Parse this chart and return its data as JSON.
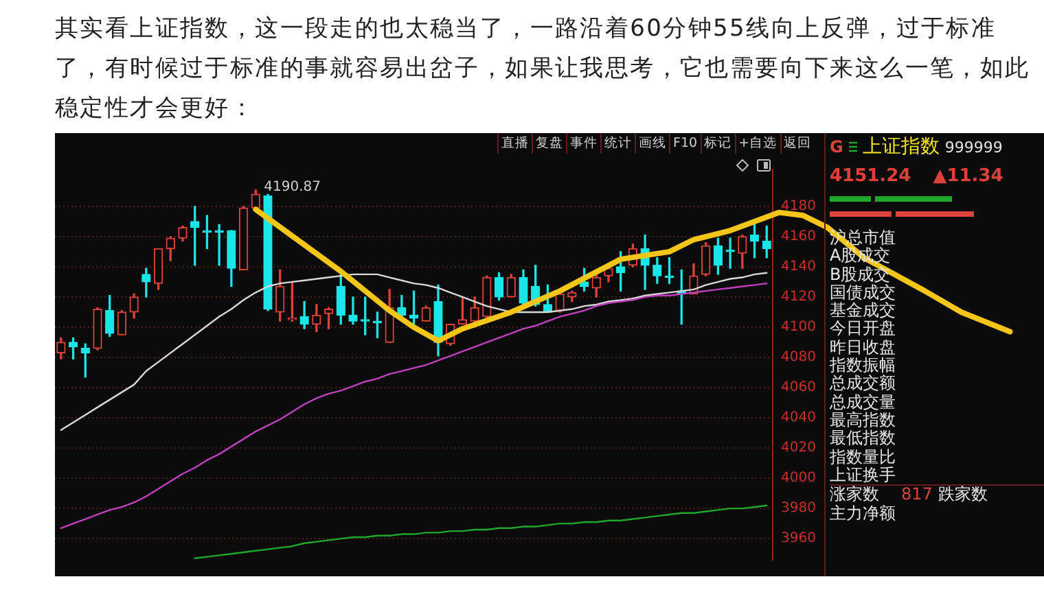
{
  "chart_data": [
    {
      "type": "candlestick",
      "title": "其实看上证指数，这一段走的也太稳当了，一路沿着60分钟55线向上反弹，过于标准了，有时候过于标准的事就容易出岔子，如果让我思考，它也需要向下来这么一笔，如此稳定性才会更好：",
      "categories": [
        null,
        null,
        null,
        null,
        null,
        null,
        null,
        null,
        null,
        null,
        null,
        null,
        null,
        null,
        null,
        null,
        null,
        null,
        null,
        null,
        null,
        null,
        null,
        null,
        null,
        null,
        null,
        null,
        null,
        null,
        null,
        null,
        null,
        null,
        null,
        null,
        null,
        null,
        null,
        null,
        null,
        null,
        null,
        null,
        null,
        null,
        null,
        null,
        null,
        null,
        null,
        null,
        null,
        null,
        null,
        null,
        null,
        null,
        null,
        null,
        null,
        null,
        null,
        null,
        null,
        null,
        null,
        null,
        null,
        null,
        null,
        null,
        null,
        null,
        null,
        null,
        null,
        null,
        null,
        null
      ],
      "ohlc": [
        [
          4083,
          4093,
          4079,
          4090
        ],
        [
          4090,
          4093,
          4079,
          4087
        ],
        [
          4086,
          4089,
          4067,
          4083
        ],
        [
          4086,
          4113,
          4085,
          4112
        ],
        [
          4111,
          4121,
          4094,
          4096
        ],
        [
          4095,
          4111,
          4095,
          4110
        ],
        [
          4110,
          4122,
          4106,
          4120
        ],
        [
          4135,
          4139,
          4120,
          4130
        ],
        [
          4129,
          4152,
          4125,
          4152
        ],
        [
          4152,
          4160,
          4144,
          4159
        ],
        [
          4159,
          4167,
          4157,
          4166
        ],
        [
          4170,
          4180,
          4141,
          4166
        ],
        [
          4164,
          4174,
          4152,
          4163
        ],
        [
          4164,
          4168,
          4141,
          4163
        ],
        [
          4164,
          4164,
          4127,
          4139
        ],
        [
          4138,
          4180,
          4138,
          4179
        ],
        [
          4179,
          4190.87,
          4179,
          4188
        ],
        [
          4187,
          4188,
          4111,
          4112
        ],
        [
          4110,
          4138,
          4104,
          4127
        ],
        [
          4105,
          4130,
          4104,
          4106
        ],
        [
          4107,
          4117,
          4099,
          4102
        ],
        [
          4102,
          4115,
          4097,
          4108
        ],
        [
          4109,
          4113,
          4099,
          4112
        ],
        [
          4127,
          4135,
          4102,
          4108
        ],
        [
          4108,
          4120,
          4102,
          4104
        ],
        [
          4105,
          4120,
          4095,
          4104
        ],
        [
          4104,
          4110,
          4093,
          4103
        ],
        [
          4090,
          4125,
          4090,
          4113
        ],
        [
          4113,
          4121,
          4106,
          4108
        ],
        [
          4108,
          4124,
          4102,
          4106
        ],
        [
          4104,
          4114,
          4104,
          4113
        ],
        [
          4117,
          4128,
          4081,
          4090
        ],
        [
          4089,
          4102,
          4088,
          4102
        ],
        [
          4102,
          4120,
          4102,
          4105
        ],
        [
          4104,
          4120,
          4100,
          4113
        ],
        [
          4107,
          4134,
          4104,
          4133
        ],
        [
          4133,
          4136,
          4118,
          4120
        ],
        [
          4120,
          4135,
          4120,
          4133
        ],
        [
          4133,
          4138,
          4114,
          4116
        ],
        [
          4127,
          4141,
          4114,
          4115
        ],
        [
          4115,
          4128,
          4110,
          4110
        ],
        [
          4111,
          4122,
          4110,
          4122
        ],
        [
          4120,
          4124,
          4117,
          4123
        ],
        [
          4130,
          4139,
          4124,
          4127
        ],
        [
          4126,
          4136,
          4120,
          4133
        ],
        [
          4134,
          4142,
          4130,
          4139
        ],
        [
          4140,
          4150,
          4124,
          4136
        ],
        [
          4141,
          4155,
          4140,
          4152
        ],
        [
          4152,
          4161,
          4125,
          4141
        ],
        [
          4141,
          4146,
          4129,
          4134
        ],
        [
          4134,
          4146,
          4129,
          4133
        ],
        [
          4124,
          4138,
          4102,
          4122
        ],
        [
          4122,
          4142,
          4122,
          4134
        ],
        [
          4135,
          4156,
          4134,
          4154
        ],
        [
          4154,
          4159,
          4135,
          4141
        ],
        [
          4151,
          4159,
          4139,
          4150
        ],
        [
          4149,
          4161,
          4139,
          4160
        ],
        [
          4161,
          4169,
          4146,
          4157
        ],
        [
          4157,
          4167,
          4146,
          4152
        ],
        null,
        null,
        null,
        null,
        null,
        null,
        null,
        null,
        null,
        null,
        null,
        null,
        null,
        null,
        null,
        null,
        null,
        null,
        null,
        null,
        null
      ],
      "colors": [
        "#e0403a",
        "#19e6e6",
        "#19e6e6",
        "#e0403a",
        "#19e6e6",
        "#e0403a",
        "#e0403a",
        "#19e6e6",
        "#e0403a",
        "#e0403a",
        "#e0403a",
        "#19e6e6",
        "#19e6e6",
        "#19e6e6",
        "#19e6e6",
        "#e0403a",
        "#e0403a",
        "#19e6e6",
        "#e0403a",
        "#e0403a",
        "#19e6e6",
        "#e0403a",
        "#e0403a",
        "#19e6e6",
        "#19e6e6",
        "#19e6e6",
        "#19e6e6",
        "#e0403a",
        "#19e6e6",
        "#19e6e6",
        "#e0403a",
        "#19e6e6",
        "#e0403a",
        "#e0403a",
        "#e0403a",
        "#e0403a",
        "#19e6e6",
        "#e0403a",
        "#19e6e6",
        "#19e6e6",
        "#19e6e6",
        "#e0403a",
        "#e0403a",
        "#19e6e6",
        "#e0403a",
        "#e0403a",
        "#19e6e6",
        "#e0403a",
        "#19e6e6",
        "#19e6e6",
        "#19e6e6",
        "#19e6e6",
        "#e0403a",
        "#e0403a",
        "#19e6e6",
        "#19e6e6",
        "#e0403a",
        "#19e6e6",
        "#19e6e6",
        null,
        null,
        null,
        null,
        null,
        null,
        null,
        null,
        null,
        null,
        null,
        null,
        null,
        null,
        null,
        null,
        null,
        null,
        null,
        null,
        null
      ],
      "series": [
        {
          "type": "line",
          "color": "#d8d8d8",
          "values": [
            4032,
            4037,
            4042,
            4047,
            4052,
            4057,
            4062,
            4071,
            4077,
            4083,
            4089,
            4095,
            4101,
            4107,
            4112,
            4118,
            4123,
            4127,
            4129,
            4130,
            4131,
            4132,
            4133,
            4134,
            4135,
            4135,
            4135,
            4133,
            4131,
            4129,
            4128,
            4126,
            4123,
            4120,
            4117,
            4114,
            4112,
            4110,
            4110,
            4110,
            4110,
            4111,
            4112,
            4114,
            4115,
            4117,
            4118,
            4119,
            4121,
            4122,
            4123,
            4124,
            4125,
            4128,
            4130,
            4132,
            4133,
            4135,
            4136,
            null,
            null,
            null,
            null,
            null,
            null,
            null,
            null,
            null,
            null,
            null,
            null,
            null,
            null,
            null,
            null,
            null,
            null,
            null,
            null,
            null
          ]
        },
        {
          "type": "line",
          "color": "#c040c0",
          "values": [
            3967,
            3970,
            3973,
            3976,
            3979,
            3981,
            3984,
            3988,
            3993,
            3998,
            4003,
            4007,
            4012,
            4016,
            4021,
            4026,
            4031,
            4035,
            4039,
            4044,
            4049,
            4053,
            4056,
            4058,
            4061,
            4064,
            4066,
            4069,
            4071,
            4073,
            4075,
            4078,
            4081,
            4084,
            4087,
            4090,
            4093,
            4096,
            4099,
            4101,
            4104,
            4107,
            4109,
            4111,
            4114,
            4116,
            4117,
            4118,
            4120,
            4121,
            4121,
            4122,
            4123,
            4124,
            4125,
            4126,
            4127,
            4128,
            4129,
            null,
            null,
            null,
            null,
            null,
            null,
            null,
            null,
            null,
            null,
            null,
            null,
            null,
            null,
            null,
            null,
            null,
            null,
            null,
            null,
            null
          ]
        },
        {
          "type": "line",
          "color": "#1fa82a",
          "values": [
            null,
            null,
            null,
            null,
            null,
            null,
            null,
            null,
            null,
            null,
            null,
            3947,
            3948,
            3949,
            3950,
            3951,
            3952,
            3953,
            3954,
            3955,
            3957,
            3958,
            3959,
            3960,
            3961,
            3961,
            3962,
            3962,
            3963,
            3963,
            3964,
            3964,
            3965,
            3965,
            3966,
            3966,
            3967,
            3967,
            3968,
            3968,
            3969,
            3970,
            3970,
            3971,
            3971,
            3972,
            3972,
            3973,
            3974,
            3975,
            3976,
            3977,
            3977,
            3978,
            3979,
            3980,
            3980,
            3981,
            3982,
            null,
            null,
            null,
            null,
            null,
            null,
            null,
            null,
            null,
            null,
            null,
            null,
            null,
            null,
            null,
            null,
            null,
            null,
            null,
            null,
            null
          ]
        },
        {
          "type": "line",
          "color": "#f5c518",
          "values": [
            null,
            null,
            null,
            null,
            null,
            null,
            null,
            null,
            null,
            null,
            null,
            null,
            null,
            null,
            null,
            null,
            4178,
            null,
            null,
            null,
            null,
            null,
            null,
            4137,
            null,
            null,
            null,
            4111,
            null,
            4100,
            null,
            4091,
            null,
            4099,
            null,
            null,
            null,
            4110,
            null,
            null,
            null,
            4124,
            null,
            null,
            null,
            null,
            4145,
            null,
            null,
            null,
            4150,
            null,
            4158,
            null,
            null,
            4164,
            null,
            null,
            null,
            4176,
            null,
            4174,
            null,
            4166,
            null,
            null,
            4146,
            null,
            null,
            null,
            null,
            4124,
            null,
            null,
            4110,
            null,
            null,
            null,
            4097,
            null
          ]
        }
      ],
      "ylim": [
        3946,
        4204
      ],
      "yticks": [
        3960,
        3980,
        4000,
        4020,
        4040,
        4060,
        4080,
        4100,
        4120,
        4140,
        4160,
        4180
      ],
      "grid": "y",
      "legend": false,
      "marker": "none",
      "annotations": [
        "直播",
        "复盘",
        "事件",
        "统计",
        "画线",
        "F10",
        "标记",
        "+自选",
        "返回",
        "4190.87"
      ]
    },
    {
      "type": "other",
      "title": "上证指数",
      "subtitle": "999999",
      "annotations": [
        "G",
        "4151.24",
        "▲11.34",
        "沪总市值",
        "A股成交",
        "B股成交",
        "国债成交",
        "基金成交",
        "今日开盘",
        "昨日收盘",
        "指数振幅",
        "总成交额",
        "总成交量",
        "最高指数",
        "最低指数",
        "指数量比",
        "上证换手",
        "涨家数",
        "817",
        "跌家数",
        "主力净额"
      ]
    }
  ]
}
